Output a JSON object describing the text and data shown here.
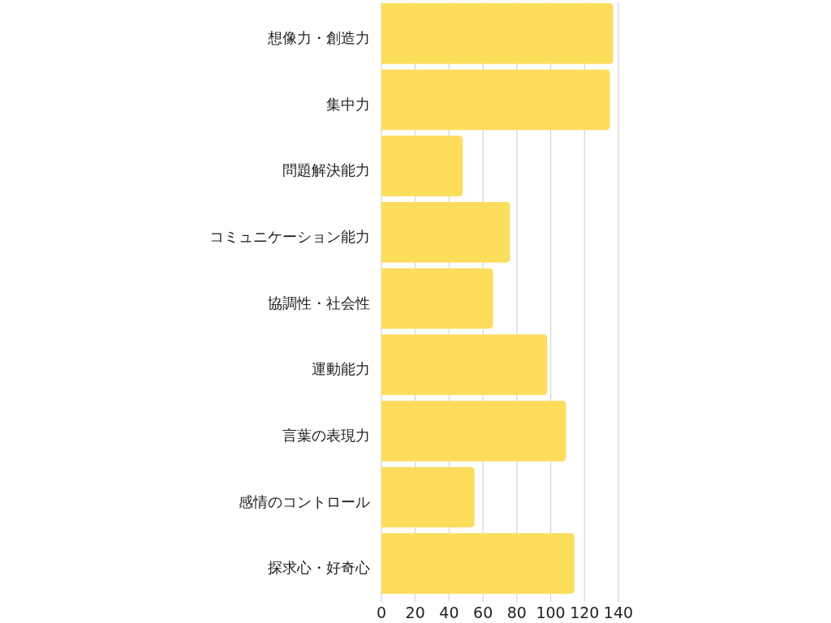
{
  "chart_data": {
    "type": "bar",
    "orientation": "horizontal",
    "categories": [
      "想像力・創造力",
      "集中力",
      "問題解決能力",
      "コミュニケーション能力",
      "協調性・社会性",
      "運動能力",
      "言葉の表現力",
      "感情のコントロール",
      "探求心・好奇心"
    ],
    "values": [
      137,
      135,
      48,
      76,
      66,
      98,
      109,
      55,
      114
    ],
    "color": "#fddd5c",
    "xlim": [
      0,
      140
    ],
    "xticks": [
      0,
      20,
      40,
      60,
      80,
      100,
      120,
      140
    ],
    "grid": "x"
  }
}
